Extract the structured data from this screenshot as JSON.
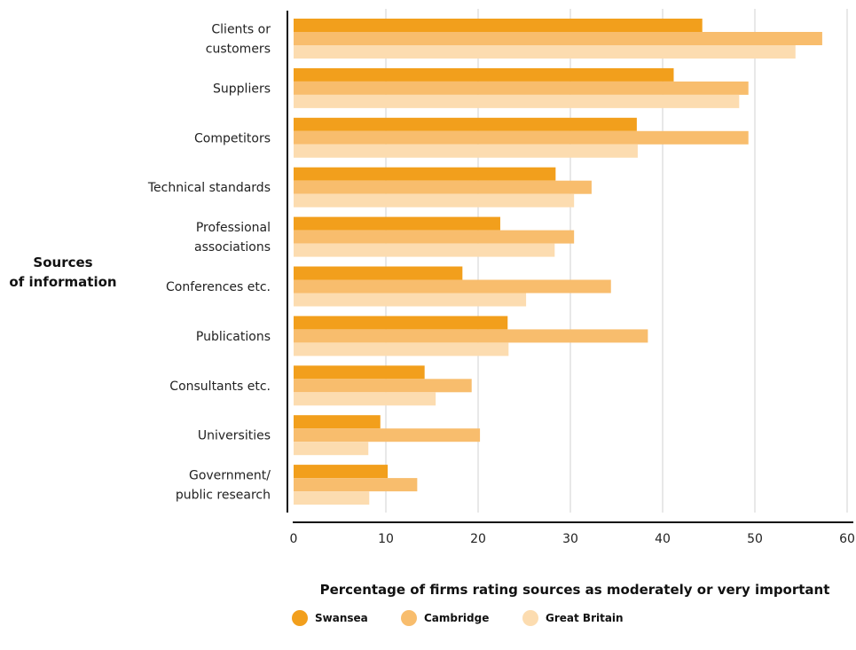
{
  "chart_data": {
    "type": "bar",
    "orientation": "horizontal",
    "categories": [
      [
        "Clients or",
        "customers"
      ],
      [
        "Suppliers"
      ],
      [
        "Competitors"
      ],
      [
        "Technical standards"
      ],
      [
        "Professional",
        "associations"
      ],
      [
        "Conferences etc."
      ],
      [
        "Publications"
      ],
      [
        "Consultants etc."
      ],
      [
        "Universities"
      ],
      [
        "Government/",
        "public research"
      ]
    ],
    "series": [
      {
        "name": "Swansea",
        "color": "#f29f1c",
        "values": [
          44.3,
          41.2,
          37.2,
          28.4,
          22.4,
          18.3,
          23.2,
          14.2,
          9.4,
          10.2
        ]
      },
      {
        "name": "Cambridge",
        "color": "#f8bd6d",
        "values": [
          57.3,
          49.3,
          49.3,
          32.3,
          30.4,
          34.4,
          38.4,
          19.3,
          20.2,
          13.4
        ]
      },
      {
        "name": "Great Britain",
        "color": "#fcdcb0",
        "values": [
          54.4,
          48.3,
          37.3,
          30.4,
          28.3,
          25.2,
          23.3,
          15.4,
          8.1,
          8.2
        ]
      }
    ],
    "xticks": [
      0,
      10,
      20,
      30,
      40,
      50,
      60
    ],
    "xlim": [
      0,
      60
    ],
    "grid": true,
    "legend_position": "bottom",
    "ylabel": [
      "Sources",
      "of information"
    ],
    "xlabel": "Percentage of firms rating sources as moderately or very important"
  }
}
